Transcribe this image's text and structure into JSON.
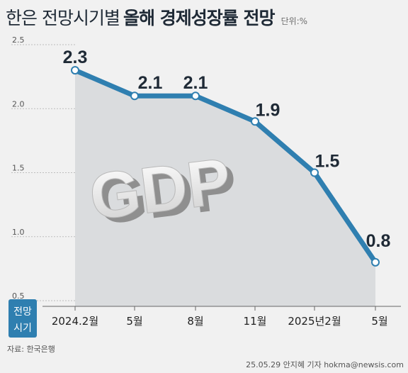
{
  "header": {
    "title_light": "한은 전망시기별",
    "title_bold": "올해 경제성장률 전망",
    "unit": "단위:%"
  },
  "corner_label": {
    "line1": "전망",
    "line2": "시기"
  },
  "watermark": "GDP",
  "footer": {
    "source": "자료: 한국은행",
    "credit": "25.05.29 안지혜 기자 hokma@newsis.com"
  },
  "colors": {
    "line": "#2f7fb0",
    "area": "#d6d8db",
    "background": "#f1f1f1",
    "label_box": "#2f7fb0"
  },
  "chart_data": {
    "type": "line",
    "categories": [
      "2024.2월",
      "5월",
      "8월",
      "11월",
      "2025년2월",
      "5월"
    ],
    "values": [
      2.3,
      2.1,
      2.1,
      1.9,
      1.5,
      0.8
    ],
    "value_labels": [
      "2.3",
      "2.1",
      "2.1",
      "1.9",
      "1.5",
      "0.8"
    ],
    "y_ticks": [
      "0.5",
      "1.0",
      "1.5",
      "2.0",
      "2.5"
    ],
    "ylim": [
      0.5,
      2.5
    ],
    "grid": false,
    "area_fill": true,
    "xlabel": "",
    "ylabel": ""
  }
}
